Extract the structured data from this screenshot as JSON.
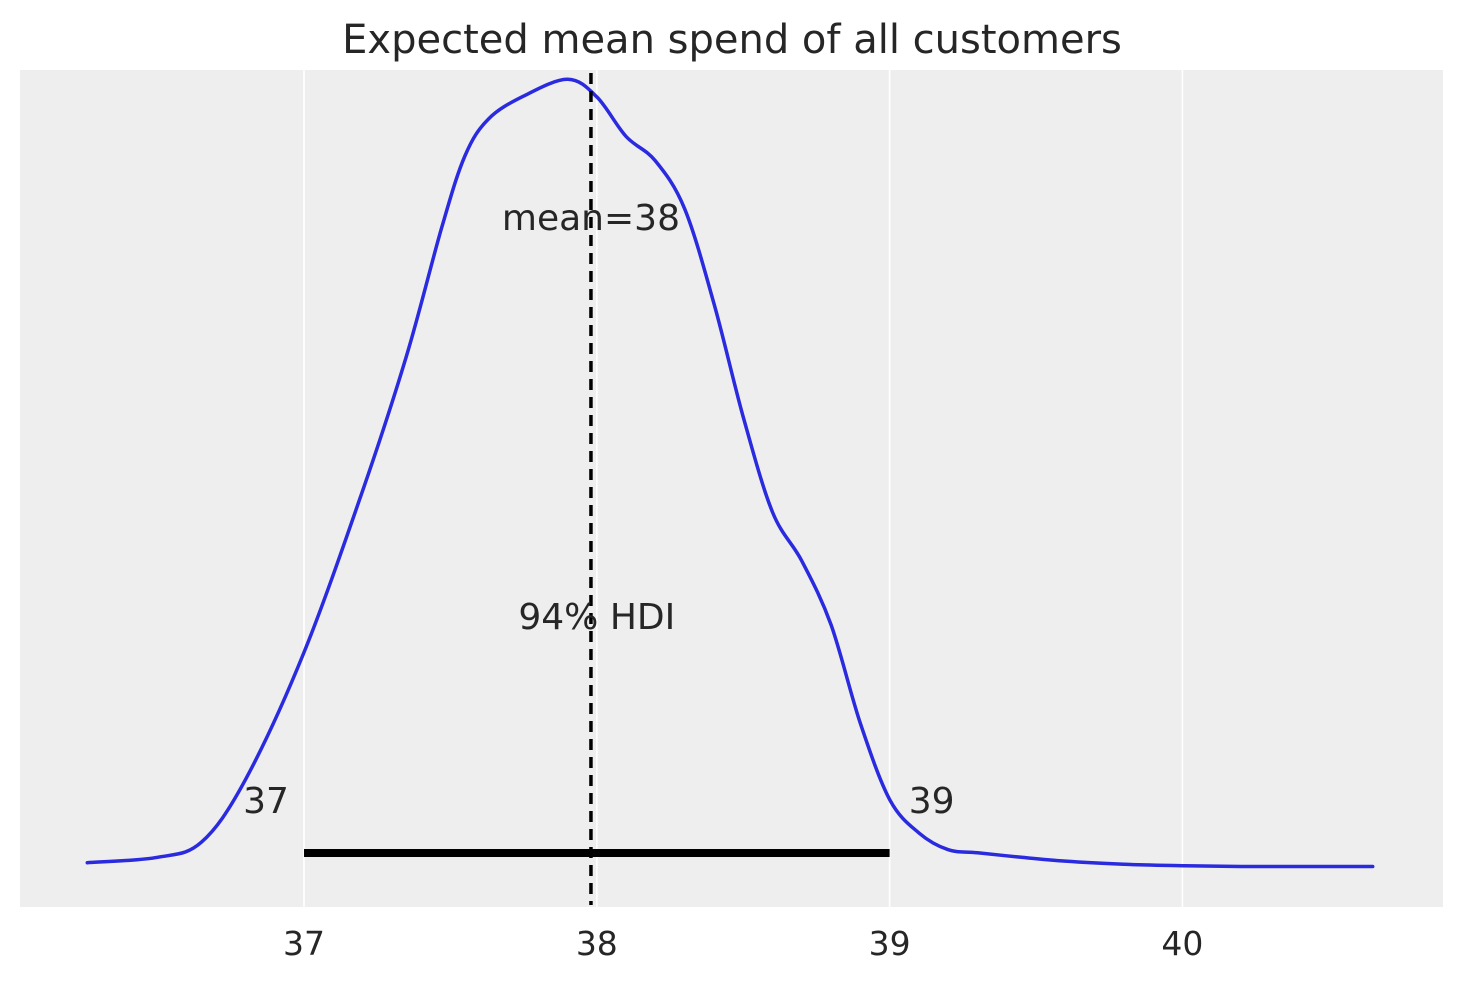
{
  "chart_data": {
    "type": "line",
    "title": "Expected mean spend of all customers",
    "xlabel": "",
    "ylabel": "",
    "xlim": [
      36.03,
      40.89
    ],
    "ylim": [
      0,
      1
    ],
    "x_ticks": [
      37,
      38,
      39,
      40
    ],
    "x_tick_labels": [
      "37",
      "38",
      "39",
      "40"
    ],
    "grid": "vertical",
    "colors": {
      "background": "#eeeeee",
      "grid": "#ffffff",
      "curve": "#2a2adf",
      "reference": "#000000"
    },
    "series": [
      {
        "x": [
          36.26,
          36.5,
          36.65,
          36.8,
          37.0,
          37.2,
          37.35,
          37.47,
          37.55,
          37.63,
          37.75,
          37.9,
          38.0,
          38.1,
          38.2,
          38.3,
          38.4,
          38.5,
          38.6,
          38.7,
          38.8,
          38.9,
          39.0,
          39.1,
          39.2,
          39.3,
          39.45,
          39.6,
          39.8,
          40.0,
          40.2,
          40.4,
          40.65
        ],
        "y": [
          0.007,
          0.014,
          0.034,
          0.116,
          0.283,
          0.495,
          0.672,
          0.84,
          0.935,
          0.983,
          1.013,
          1.035,
          1.012,
          0.96,
          0.928,
          0.865,
          0.741,
          0.592,
          0.467,
          0.403,
          0.319,
          0.19,
          0.09,
          0.046,
          0.024,
          0.02,
          0.014,
          0.009,
          0.005,
          0.003,
          0.002,
          0.002,
          0.002
        ]
      }
    ],
    "mean": 37.98,
    "mean_label": "mean=38",
    "hdi": {
      "prob_label": "94% HDI",
      "low": 37.0,
      "high": 39.0,
      "low_label": "37",
      "high_label": "39"
    }
  }
}
